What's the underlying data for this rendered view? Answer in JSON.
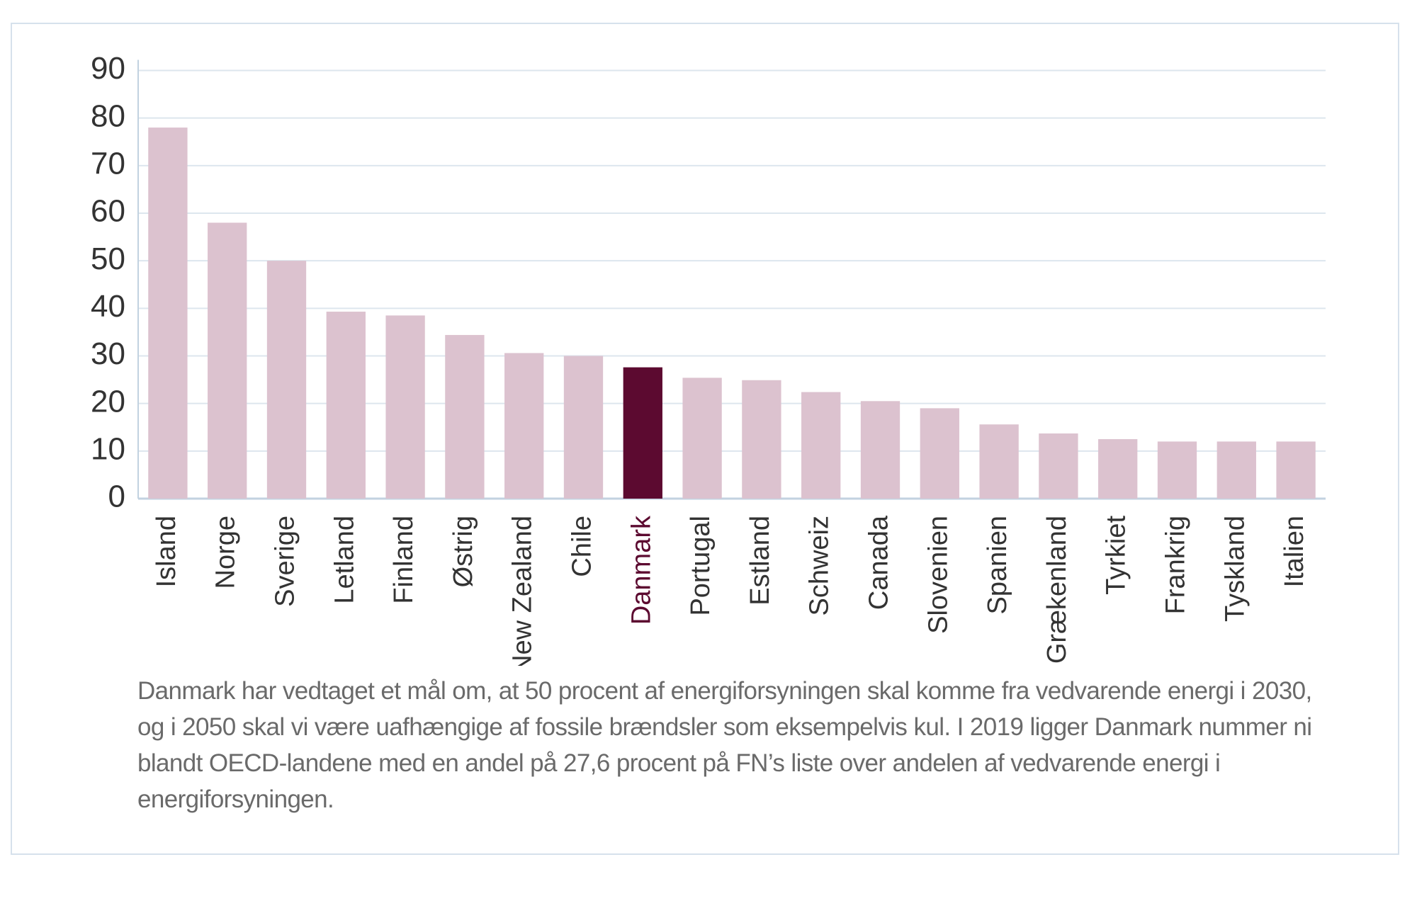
{
  "chart_data": {
    "type": "bar",
    "categories": [
      "Island",
      "Norge",
      "Sverige",
      "Letland",
      "Finland",
      "Østrig",
      "New Zealand",
      "Chile",
      "Danmark",
      "Portugal",
      "Estland",
      "Schweiz",
      "Canada",
      "Slovenien",
      "Spanien",
      "Grækenland",
      "Tyrkiet",
      "Frankrig",
      "Tyskland",
      "Italien"
    ],
    "values": [
      78,
      58,
      50,
      39.3,
      38.5,
      34.4,
      30.6,
      30,
      27.6,
      25.4,
      24.9,
      22.4,
      20.5,
      19,
      15.6,
      13.7,
      12.5,
      12,
      12,
      12
    ],
    "color": "#dcc2cf",
    "colors": [
      "#dcc2cf",
      "#dcc2cf",
      "#dcc2cf",
      "#dcc2cf",
      "#dcc2cf",
      "#dcc2cf",
      "#dcc2cf",
      "#dcc2cf",
      "#5c0a30",
      "#dcc2cf",
      "#dcc2cf",
      "#dcc2cf",
      "#dcc2cf",
      "#dcc2cf",
      "#dcc2cf",
      "#dcc2cf",
      "#dcc2cf",
      "#dcc2cf",
      "#dcc2cf",
      "#dcc2cf"
    ],
    "ylim": [
      0,
      90
    ],
    "yticks": [
      0,
      10,
      20,
      30,
      40,
      50,
      60,
      70,
      80,
      90
    ],
    "grid": true,
    "caption": "Danmark har vedtaget et mål om, at 50 procent af energiforsyningen skal komme fra vedvarende energi i 2030, og i 2050 skal vi være uafhængige af fossile brændsler som eksempelvis kul. I 2019 ligger Danmark nummer ni blandt OECD-landene med en andel på 27,6 procent på FN’s liste over andelen af vedvarende energi i energiforsyningen."
  }
}
